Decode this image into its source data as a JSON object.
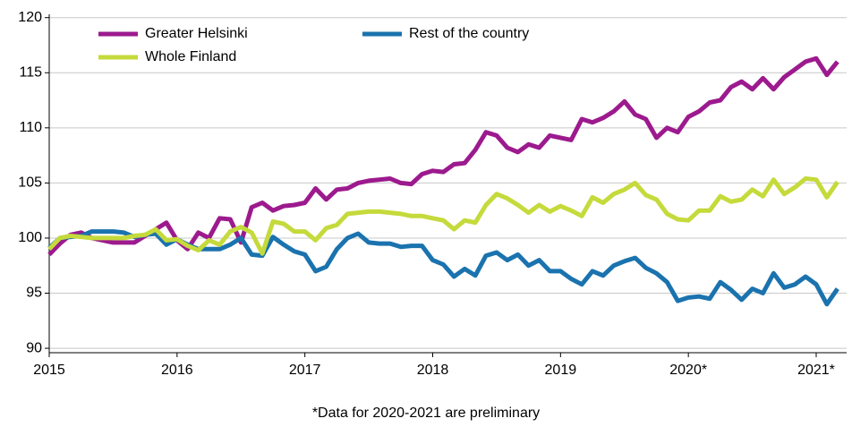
{
  "chart_data": {
    "type": "line",
    "footnote": "*Data for 2020-2021 are preliminary",
    "categories": [
      "2015",
      null,
      null,
      null,
      null,
      null,
      null,
      null,
      null,
      null,
      null,
      null,
      "2016",
      null,
      null,
      null,
      null,
      null,
      null,
      null,
      null,
      null,
      null,
      null,
      "2017",
      null,
      null,
      null,
      null,
      null,
      null,
      null,
      null,
      null,
      null,
      null,
      "2018",
      null,
      null,
      null,
      null,
      null,
      null,
      null,
      null,
      null,
      null,
      null,
      "2019",
      null,
      null,
      null,
      null,
      null,
      null,
      null,
      null,
      null,
      null,
      null,
      "2020*",
      null,
      null,
      null,
      null,
      null,
      null,
      null,
      null,
      null,
      null,
      null,
      "2021*",
      null,
      null
    ],
    "series": [
      {
        "name": "Greater Helsinki",
        "color": "#9c1a8e",
        "values": [
          98.5,
          99.5,
          100.3,
          100.5,
          100.0,
          99.8,
          99.6,
          99.6,
          99.6,
          100.2,
          100.8,
          101.4,
          99.8,
          99.0,
          100.5,
          100.0,
          101.8,
          101.7,
          99.6,
          102.8,
          103.2,
          102.5,
          102.9,
          103.0,
          103.2,
          104.5,
          103.5,
          104.4,
          104.5,
          105.0,
          105.2,
          105.3,
          105.4,
          105.0,
          104.9,
          105.8,
          106.1,
          106.0,
          106.7,
          106.8,
          108.0,
          109.6,
          109.3,
          108.2,
          107.8,
          108.5,
          108.2,
          109.3,
          109.1,
          108.9,
          110.8,
          110.5,
          110.9,
          111.5,
          112.4,
          111.2,
          110.8,
          109.1,
          110.0,
          109.6,
          111.0,
          111.5,
          112.3,
          112.5,
          113.7,
          114.2,
          113.5,
          114.5,
          113.5,
          114.6,
          115.3,
          116.0,
          116.3,
          114.8,
          116.0
        ]
      },
      {
        "name": "Rest of the country",
        "color": "#1a73ae",
        "values": [
          99.1,
          100.0,
          100.1,
          100.2,
          100.6,
          100.6,
          100.6,
          100.5,
          100.1,
          100.3,
          100.4,
          99.4,
          99.9,
          99.4,
          99.0,
          99.0,
          99.0,
          99.4,
          100.0,
          98.5,
          98.4,
          100.1,
          99.4,
          98.8,
          98.5,
          97.0,
          97.4,
          99.0,
          100.0,
          100.4,
          99.6,
          99.5,
          99.5,
          99.2,
          99.3,
          99.3,
          98.0,
          97.6,
          96.5,
          97.2,
          96.6,
          98.4,
          98.7,
          98.0,
          98.5,
          97.5,
          98.0,
          97.0,
          97.0,
          96.3,
          95.8,
          97.0,
          96.6,
          97.5,
          97.9,
          98.2,
          97.3,
          96.8,
          96.0,
          94.3,
          94.6,
          94.7,
          94.5,
          96.0,
          95.3,
          94.4,
          95.4,
          95.0,
          96.8,
          95.5,
          95.8,
          96.5,
          95.8,
          94.0,
          95.4
        ]
      },
      {
        "name": "Whole Finland",
        "color": "#c5da3b",
        "values": [
          99.0,
          100.0,
          100.2,
          100.1,
          100.0,
          100.0,
          100.0,
          100.0,
          100.2,
          100.3,
          100.8,
          99.8,
          99.9,
          99.3,
          98.9,
          99.8,
          99.4,
          100.6,
          101.0,
          100.5,
          98.6,
          101.5,
          101.3,
          100.6,
          100.6,
          99.8,
          100.9,
          101.2,
          102.2,
          102.3,
          102.4,
          102.4,
          102.3,
          102.2,
          102.0,
          102.0,
          101.8,
          101.6,
          100.8,
          101.6,
          101.4,
          103.0,
          104.0,
          103.6,
          103.0,
          102.3,
          103.0,
          102.4,
          102.9,
          102.5,
          102.0,
          103.7,
          103.2,
          104.0,
          104.4,
          105.0,
          103.9,
          103.5,
          102.2,
          101.7,
          101.6,
          102.5,
          102.5,
          103.8,
          103.3,
          103.5,
          104.4,
          103.8,
          105.3,
          104.0,
          104.6,
          105.4,
          105.3,
          103.7,
          105.1
        ]
      }
    ],
    "ylim": [
      89.6,
      120.3
    ],
    "yticks": [
      90,
      95,
      100,
      105,
      110,
      115,
      120
    ],
    "grid": true,
    "legend": "top-left"
  }
}
